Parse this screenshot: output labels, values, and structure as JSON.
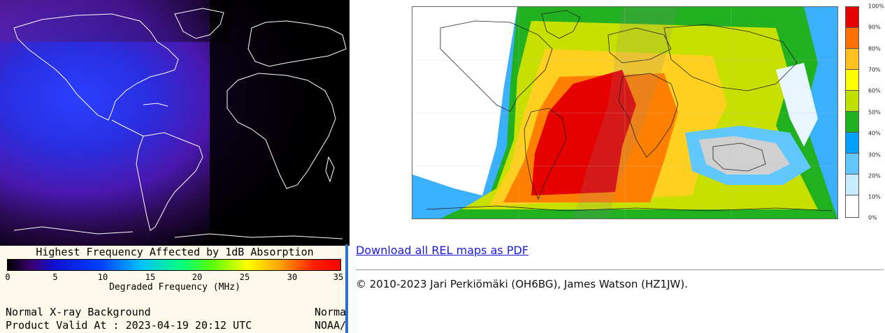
{
  "d_region": {
    "legend_title": "Highest Frequency Affected by 1dB Absorption",
    "colorbar_ticks": [
      "0",
      "5",
      "10",
      "15",
      "20",
      "25",
      "30",
      "35"
    ],
    "colorbar_xlabel": "Degraded Frequency (MHz)",
    "status": "Normal X-ray Background",
    "valid_at": "Product Valid At : 2023-04-19 20:12 UTC",
    "right_status_cut": "Norma",
    "right_source_cut": "NOAA/"
  },
  "rel_map": {
    "legend": {
      "labels": [
        "100%",
        "90%",
        "80%",
        "70%",
        "60%",
        "50%",
        "40%",
        "30%",
        "20%",
        "10%",
        "0%"
      ],
      "colors": [
        "#e60000",
        "#ff7000",
        "#ffc020",
        "#ffff00",
        "#c0e000",
        "#20b020",
        "#00a0ff",
        "#60c8ff",
        "#c8ecff",
        "#ffffff"
      ]
    }
  },
  "footer": {
    "download_link": "Download all REL maps as PDF",
    "copyright": "© 2010-2023 Jari Perkiömäki (OH6BG), James Watson (HZ1JW)."
  }
}
